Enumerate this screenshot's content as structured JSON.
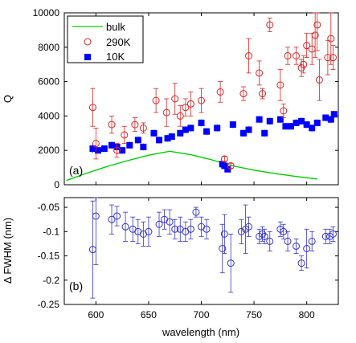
{
  "chart_data": [
    {
      "type": "scatter",
      "panel_label": "(a)",
      "ylabel": "Q",
      "xlim": [
        570,
        830
      ],
      "ylim": [
        0,
        10000
      ],
      "yticks": [
        0,
        2000,
        4000,
        6000,
        8000,
        10000
      ],
      "ytick_labels": [
        "0",
        "2000",
        "4000",
        "6000",
        "8000",
        "10000"
      ],
      "legend": {
        "placement": "top-left",
        "entries": [
          "bulk",
          "290K",
          "10K"
        ]
      },
      "colors": {
        "bulk": "#00cc00",
        "290K": "#dd2222",
        "10K": "#0000ff"
      },
      "series": [
        {
          "name": "bulk",
          "style": "line",
          "x": [
            572,
            590,
            610,
            630,
            650,
            670,
            690,
            710,
            730,
            750,
            770,
            790,
            810
          ],
          "y": [
            250,
            650,
            1050,
            1400,
            1720,
            1950,
            1750,
            1450,
            1100,
            850,
            650,
            480,
            330
          ]
        },
        {
          "name": "290K",
          "style": "open-circle",
          "x": [
            597,
            600,
            615,
            620,
            627,
            637,
            645,
            657,
            667,
            675,
            680,
            685,
            690,
            700,
            718,
            722,
            728,
            740,
            745,
            755,
            758,
            765,
            775,
            778,
            782,
            790,
            795,
            797,
            800,
            805,
            808,
            810,
            812,
            820,
            823,
            825
          ],
          "y": [
            4500,
            2400,
            3500,
            2000,
            2900,
            3500,
            3300,
            4900,
            4200,
            5000,
            4000,
            4500,
            4700,
            4900,
            5400,
            1500,
            1100,
            5300,
            7500,
            6500,
            5300,
            9300,
            5800,
            4300,
            7500,
            7500,
            6800,
            7000,
            8100,
            7900,
            8700,
            9300,
            6100,
            7400,
            8500,
            7400
          ],
          "err": [
            1100,
            900,
            500,
            400,
            500,
            400,
            300,
            700,
            800,
            900,
            600,
            500,
            700,
            700,
            600,
            150,
            150,
            400,
            1000,
            700,
            300,
            400,
            900,
            400,
            500,
            500,
            500,
            500,
            700,
            900,
            1300,
            1500,
            1200,
            1000,
            1500,
            700
          ]
        },
        {
          "name": "10K",
          "style": "filled-square",
          "x": [
            597,
            602,
            608,
            615,
            620,
            625,
            632,
            640,
            645,
            655,
            660,
            668,
            672,
            680,
            685,
            690,
            700,
            705,
            715,
            720,
            722,
            725,
            730,
            740,
            745,
            755,
            760,
            765,
            775,
            780,
            785,
            790,
            795,
            800,
            805,
            810,
            818,
            823,
            826
          ],
          "y": [
            2100,
            2000,
            2100,
            2300,
            2200,
            2000,
            2300,
            2600,
            2200,
            3000,
            2600,
            2700,
            2800,
            3000,
            3200,
            3300,
            3600,
            3100,
            3300,
            1200,
            1100,
            900,
            3500,
            3000,
            3200,
            3800,
            3000,
            3700,
            3800,
            3400,
            3400,
            3600,
            3700,
            3500,
            3300,
            3600,
            3900,
            3800,
            4100
          ],
          "err": [
            250,
            200,
            200,
            200,
            200,
            200,
            200,
            200,
            200,
            200,
            200,
            200,
            200,
            200,
            200,
            200,
            200,
            200,
            200,
            150,
            150,
            150,
            200,
            200,
            200,
            200,
            200,
            200,
            200,
            200,
            200,
            200,
            200,
            200,
            200,
            200,
            200,
            200,
            200
          ]
        }
      ]
    },
    {
      "type": "scatter",
      "panel_label": "(b)",
      "xlabel": "wavelength (nm)",
      "ylabel": "Δ FWHM (nm)",
      "xlim": [
        570,
        830
      ],
      "ylim": [
        -0.25,
        -0.03
      ],
      "xticks": [
        600,
        650,
        700,
        750,
        800
      ],
      "xtick_labels": [
        "600",
        "650",
        "700",
        "750",
        "800"
      ],
      "yticks": [
        -0.05,
        -0.1,
        -0.15,
        -0.2,
        -0.25
      ],
      "ytick_labels": [
        "-0.05",
        "-0.1",
        "-0.15",
        "-0.2",
        "-0.25"
      ],
      "colors": {
        "points": "#3333cc"
      },
      "series": [
        {
          "style": "open-circle",
          "x": [
            597,
            600,
            615,
            620,
            628,
            635,
            640,
            645,
            650,
            660,
            665,
            670,
            675,
            680,
            685,
            690,
            695,
            700,
            705,
            720,
            722,
            728,
            738,
            742,
            745,
            755,
            758,
            760,
            765,
            775,
            778,
            782,
            790,
            795,
            800,
            805,
            818,
            822,
            825
          ],
          "y": [
            -0.137,
            -0.068,
            -0.075,
            -0.068,
            -0.09,
            -0.095,
            -0.1,
            -0.105,
            -0.1,
            -0.085,
            -0.075,
            -0.08,
            -0.095,
            -0.095,
            -0.1,
            -0.095,
            -0.06,
            -0.09,
            -0.095,
            -0.135,
            -0.105,
            -0.165,
            -0.1,
            -0.095,
            -0.09,
            -0.11,
            -0.105,
            -0.11,
            -0.12,
            -0.095,
            -0.1,
            -0.12,
            -0.13,
            -0.165,
            -0.135,
            -0.12,
            -0.11,
            -0.11,
            -0.105
          ],
          "err": [
            0.1,
            0.1,
            0.03,
            0.02,
            0.03,
            0.025,
            0.025,
            0.025,
            0.03,
            0.025,
            0.02,
            0.025,
            0.02,
            0.025,
            0.02,
            0.02,
            0.01,
            0.02,
            0.02,
            0.05,
            0.04,
            0.06,
            0.025,
            0.05,
            0.02,
            0.015,
            0.015,
            0.015,
            0.02,
            0.015,
            0.015,
            0.02,
            0.015,
            0.015,
            0.04,
            0.02,
            0.015,
            0.015,
            0.015
          ]
        }
      ]
    }
  ]
}
